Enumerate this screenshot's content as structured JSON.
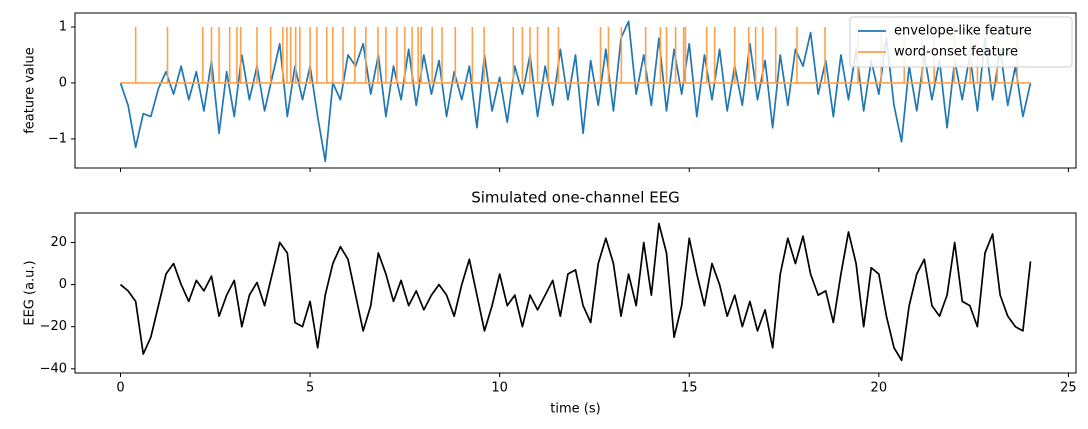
{
  "chart_data": [
    {
      "type": "line",
      "ylabel": "feature value",
      "legend": "upper right",
      "x": [
        0,
        0.2,
        0.4,
        0.6,
        0.8,
        1,
        1.2,
        1.4,
        1.6,
        1.8,
        2,
        2.2,
        2.4,
        2.6,
        2.8,
        3,
        3.2,
        3.4,
        3.6,
        3.8,
        4,
        4.2,
        4.4,
        4.6,
        4.8,
        5,
        5.2,
        5.4,
        5.6,
        5.8,
        6,
        6.2,
        6.4,
        6.6,
        6.8,
        7,
        7.2,
        7.4,
        7.6,
        7.8,
        8,
        8.2,
        8.4,
        8.6,
        8.8,
        9,
        9.2,
        9.4,
        9.6,
        9.8,
        10,
        10.2,
        10.4,
        10.6,
        10.8,
        11,
        11.2,
        11.4,
        11.6,
        11.8,
        12,
        12.2,
        12.4,
        12.6,
        12.8,
        13,
        13.2,
        13.4,
        13.6,
        13.8,
        14,
        14.2,
        14.4,
        14.6,
        14.8,
        15,
        15.2,
        15.4,
        15.6,
        15.8,
        16,
        16.2,
        16.4,
        16.6,
        16.8,
        17,
        17.2,
        17.4,
        17.6,
        17.8,
        18,
        18.2,
        18.4,
        18.6,
        18.8,
        19,
        19.2,
        19.4,
        19.6,
        19.8,
        20,
        20.2,
        20.4,
        20.6,
        20.8,
        21,
        21.2,
        21.4,
        21.6,
        21.8,
        22,
        22.2,
        22.4,
        22.6,
        22.8,
        23,
        23.2,
        23.4,
        23.6,
        23.8,
        24
      ],
      "series": [
        {
          "name": "envelope-like feature",
          "color": "#1f77b4",
          "values": [
            0,
            -0.4,
            -1.15,
            -0.55,
            -0.6,
            -0.1,
            0.2,
            -0.2,
            0.3,
            -0.3,
            0.2,
            -0.5,
            0.4,
            -0.9,
            0.2,
            -0.6,
            0.5,
            -0.3,
            0.3,
            -0.5,
            0.1,
            0.7,
            -0.6,
            0.3,
            -0.3,
            0.3,
            -0.6,
            -1.4,
            0,
            -0.3,
            0.5,
            0.3,
            0.7,
            -0.2,
            0.5,
            -0.6,
            0.3,
            -0.3,
            0.6,
            -0.4,
            0.5,
            -0.2,
            0.4,
            -0.6,
            0.2,
            -0.3,
            0.3,
            -0.8,
            0.5,
            -0.5,
            0.1,
            -0.7,
            0.3,
            -0.2,
            0.5,
            -0.6,
            0.3,
            -0.4,
            0.6,
            -0.3,
            0.5,
            -0.9,
            0.4,
            -0.4,
            0.6,
            -0.5,
            0.8,
            1.1,
            -0.2,
            0.5,
            -0.4,
            0.8,
            -0.5,
            0.6,
            -0.2,
            0.7,
            -0.6,
            0.5,
            -0.3,
            0.6,
            -0.5,
            0.3,
            -0.4,
            0.7,
            -0.3,
            0.4,
            -0.8,
            0.5,
            -0.4,
            0.6,
            0.3,
            0.9,
            -0.2,
            0.4,
            -0.6,
            0.5,
            -0.3,
            0.6,
            -0.5,
            0.4,
            -0.2,
            0.8,
            -0.4,
            -1.05,
            0.3,
            -0.5,
            0.5,
            -0.3,
            0.4,
            -0.8,
            0.4,
            -0.3,
            0.5,
            -0.5,
            0.8,
            -0.3,
            0.6,
            -0.4,
            0.3,
            -0.6,
            0
          ]
        },
        {
          "name": "word-onset feature",
          "color": "#ffa04a",
          "x": [
            0.4,
            1.24,
            2.17,
            2.4,
            2.6,
            2.88,
            3.07,
            3.17,
            3.6,
            3.96,
            4.28,
            4.39,
            4.49,
            4.62,
            4.73,
            5.0,
            5.18,
            5.44,
            5.6,
            5.87,
            6.18,
            6.47,
            6.79,
            7.0,
            7.29,
            7.5,
            7.69,
            7.85,
            7.93,
            8.22,
            8.48,
            8.83,
            9.28,
            9.59,
            10.36,
            10.6,
            10.8,
            11.0,
            11.28,
            11.55,
            12.66,
            12.87,
            13.21,
            13.85,
            14.24,
            14.4,
            14.64,
            14.85,
            14.9,
            15.46,
            15.67,
            16.2,
            16.57,
            16.75,
            16.94,
            17.28,
            17.84,
            18.58,
            19.45,
            20.06,
            20.67,
            21.14,
            21.46,
            21.99,
            22.41,
            22.6,
            23.12,
            23.65
          ],
          "values": [
            1,
            1,
            1,
            1,
            1,
            1,
            1,
            1,
            1,
            1,
            1,
            1,
            1,
            1,
            1,
            1,
            1,
            1,
            1,
            1,
            1,
            1,
            1,
            1,
            1,
            1,
            1,
            1,
            1,
            1,
            1,
            1,
            1,
            1,
            1,
            1,
            1,
            1,
            1,
            1,
            1,
            1,
            1,
            1,
            1,
            1,
            1,
            1,
            1,
            1,
            1,
            1,
            1,
            1,
            1,
            1,
            1,
            1,
            1,
            1,
            1,
            1,
            1,
            1,
            1,
            1,
            1,
            1
          ]
        }
      ],
      "xlim": [
        -1.2,
        25.2
      ],
      "xticks": [
        0,
        5,
        10,
        15,
        20,
        25
      ],
      "ylim": [
        -1.52,
        1.25
      ],
      "yticks": [
        {
          "value": -1,
          "label": "−1"
        },
        0,
        1
      ]
    },
    {
      "type": "line",
      "title": "Simulated one-channel EEG",
      "xlabel": "time (s)",
      "ylabel": "EEG (a.u.)",
      "x": [
        0,
        0.2,
        0.4,
        0.6,
        0.8,
        1,
        1.2,
        1.4,
        1.6,
        1.8,
        2,
        2.2,
        2.4,
        2.6,
        2.8,
        3,
        3.2,
        3.4,
        3.6,
        3.8,
        4,
        4.2,
        4.4,
        4.6,
        4.8,
        5,
        5.2,
        5.4,
        5.6,
        5.8,
        6,
        6.2,
        6.4,
        6.6,
        6.8,
        7,
        7.2,
        7.4,
        7.6,
        7.8,
        8,
        8.2,
        8.4,
        8.6,
        8.8,
        9,
        9.2,
        9.4,
        9.6,
        9.8,
        10,
        10.2,
        10.4,
        10.6,
        10.8,
        11,
        11.2,
        11.4,
        11.6,
        11.8,
        12,
        12.2,
        12.4,
        12.6,
        12.8,
        13,
        13.2,
        13.4,
        13.6,
        13.8,
        14,
        14.2,
        14.4,
        14.6,
        14.8,
        15,
        15.2,
        15.4,
        15.6,
        15.8,
        16,
        16.2,
        16.4,
        16.6,
        16.8,
        17,
        17.2,
        17.4,
        17.6,
        17.8,
        18,
        18.2,
        18.4,
        18.6,
        18.8,
        19,
        19.2,
        19.4,
        19.6,
        19.8,
        20,
        20.2,
        20.4,
        20.6,
        20.8,
        21,
        21.2,
        21.4,
        21.6,
        21.8,
        22,
        22.2,
        22.4,
        22.6,
        22.8,
        23,
        23.2,
        23.4,
        23.6,
        23.8,
        24
      ],
      "series": [
        {
          "name": "EEG",
          "color": "#000000",
          "values": [
            0,
            -3,
            -8,
            -33,
            -25,
            -10,
            5,
            10,
            0,
            -8,
            2,
            -3,
            4,
            -15,
            -5,
            2,
            -20,
            -5,
            1,
            -10,
            5,
            20,
            15,
            -18,
            -20,
            -8,
            -30,
            -5,
            10,
            18,
            12,
            -5,
            -22,
            -10,
            15,
            5,
            -8,
            2,
            -10,
            -3,
            -12,
            -5,
            0,
            -5,
            -15,
            0,
            12,
            -5,
            -22,
            -10,
            5,
            -10,
            -5,
            -20,
            -5,
            -12,
            -5,
            2,
            -15,
            5,
            7,
            -10,
            -18,
            10,
            22,
            10,
            -15,
            5,
            -10,
            20,
            -5,
            29,
            15,
            -25,
            -10,
            22,
            5,
            -10,
            10,
            0,
            -15,
            -5,
            -20,
            -8,
            -22,
            -12,
            -30,
            5,
            22,
            10,
            23,
            5,
            -5,
            -3,
            -18,
            5,
            25,
            10,
            -20,
            8,
            5,
            -15,
            -30,
            -36,
            -10,
            5,
            12,
            -10,
            -15,
            -5,
            20,
            -8,
            -10,
            -20,
            15,
            24,
            -5,
            -15,
            -20,
            -22,
            11
          ]
        }
      ],
      "xlim": [
        -1.2,
        25.2
      ],
      "xticks": [
        0,
        5,
        10,
        15,
        20,
        25
      ],
      "ylim": [
        -42,
        34
      ],
      "yticks": [
        {
          "value": -40,
          "label": "−40"
        },
        {
          "value": -20,
          "label": "−20"
        },
        0,
        20
      ]
    }
  ]
}
